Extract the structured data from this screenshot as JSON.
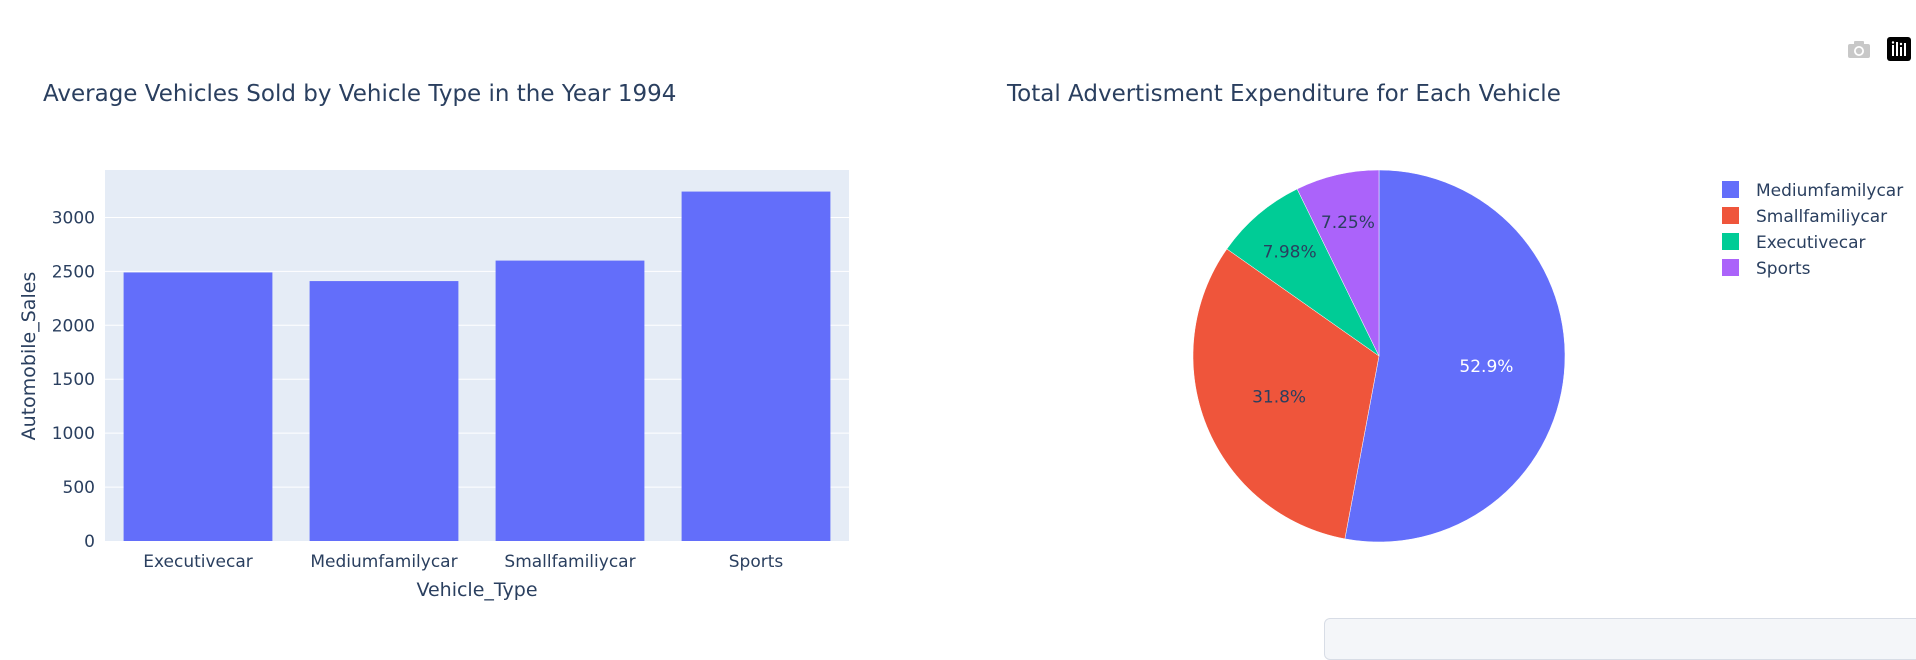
{
  "chart_data": [
    {
      "type": "bar",
      "title": "Average Vehicles Sold by Vehicle Type in the Year 1994",
      "xlabel": "Vehicle_Type",
      "ylabel": "Automobile_Sales",
      "categories": [
        "Executivecar",
        "Mediumfamilycar",
        "Smallfamiliycar",
        "Sports"
      ],
      "values": [
        2490,
        2410,
        2600,
        3240
      ],
      "ylim": [
        0,
        3440
      ],
      "yticks": [
        0,
        500,
        1000,
        1500,
        2000,
        2500,
        3000
      ],
      "color": "#636efa",
      "background": "#e5ecf6",
      "grid": true
    },
    {
      "type": "pie",
      "title": "Total Advertisment Expenditure for Each Vehicle",
      "labels": [
        "Mediumfamilycar",
        "Smallfamiliycar",
        "Executivecar",
        "Sports"
      ],
      "values": [
        52.9,
        31.8,
        7.98,
        7.25
      ],
      "value_labels": [
        "52.9%",
        "31.8%",
        "7.98%",
        "7.25%"
      ],
      "colors": [
        "#636efa",
        "#ef553b",
        "#00cc96",
        "#ab63fa"
      ],
      "legend_position": "top-right"
    }
  ],
  "modebar": {
    "icons": [
      "camera-icon",
      "plotly-logo-icon"
    ]
  }
}
